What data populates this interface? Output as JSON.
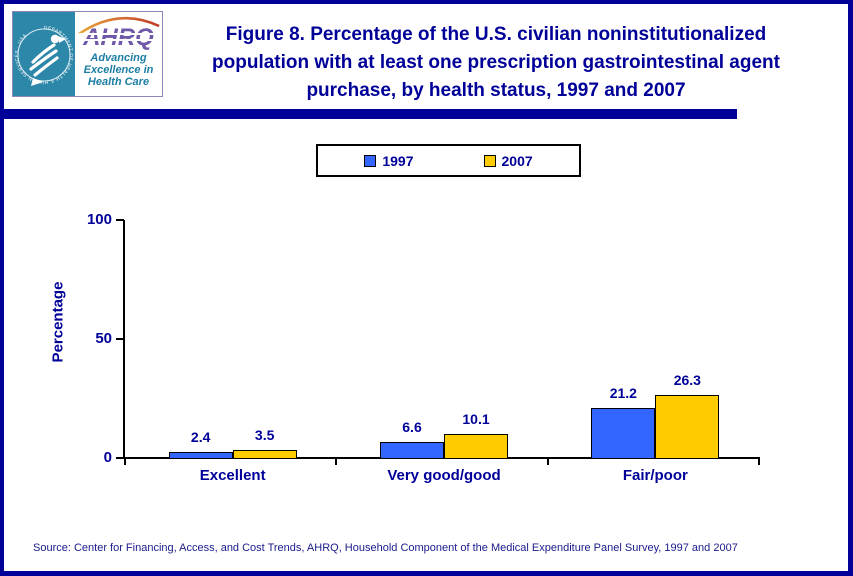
{
  "header": {
    "logo": {
      "acronym": "AHRQ",
      "tagline_lines": [
        "Advancing",
        "Excellence in",
        "Health Care"
      ],
      "seal_ring_text": "DEPARTMENT OF HEALTH & HUMAN SERVICES · USA"
    },
    "title_lines": [
      "Figure 8. Percentage of the U.S. civilian noninstitutionalized",
      "population with at least one prescription gastrointestinal agent",
      "purchase, by health status, 1997 and 2007"
    ]
  },
  "chart_data": {
    "type": "bar",
    "title": "Figure 8. Percentage of the U.S. civilian noninstitutionalized population with at least one prescription gastrointestinal agent purchase, by health status, 1997 and 2007",
    "categories": [
      "Excellent",
      "Very good/good",
      "Fair/poor"
    ],
    "series": [
      {
        "name": "1997",
        "color": "#3366FF",
        "values": [
          2.4,
          6.6,
          21.2
        ]
      },
      {
        "name": "2007",
        "color": "#FFCC00",
        "values": [
          3.5,
          10.1,
          26.3
        ]
      }
    ],
    "value_labels": true,
    "xlabel": "",
    "ylabel": "Percentage",
    "ylim": [
      0,
      100
    ],
    "yticks": [
      0,
      50,
      100
    ],
    "grid": false,
    "legend_position": "top-center"
  },
  "source_note": "Source: Center for Financing, Access, and Cost Trends, AHRQ, Household Component of the Medical Expenditure Panel Survey, 1997 and 2007",
  "colors": {
    "accent_navy": "#000099",
    "bar_1997": "#3366FF",
    "bar_2007": "#FFCC00",
    "seal_teal": "#2D87A9",
    "ahrq_purple": "#6F58A8",
    "tagline_teal": "#1C7EA5",
    "swoosh_orange": "#E0862C"
  }
}
